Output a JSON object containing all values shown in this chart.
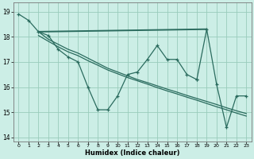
{
  "xlabel": "Humidex (Indice chaleur)",
  "bg_color": "#cceee6",
  "line_color": "#2a6b5e",
  "grid_color": "#99ccbb",
  "xlim": [
    -0.5,
    23.5
  ],
  "ylim": [
    13.85,
    19.35
  ],
  "yticks": [
    14,
    15,
    16,
    17,
    18,
    19
  ],
  "xticks": [
    0,
    1,
    2,
    3,
    4,
    5,
    6,
    7,
    8,
    9,
    10,
    11,
    12,
    13,
    14,
    15,
    16,
    17,
    18,
    19,
    20,
    21,
    22,
    23
  ],
  "line1_x": [
    0,
    1,
    2,
    3,
    4,
    5,
    6,
    7,
    8,
    9,
    10,
    11,
    12,
    13,
    14,
    15,
    16,
    17,
    18
  ],
  "line1_y": [
    18.9,
    18.65,
    18.2,
    18.05,
    17.5,
    17.2,
    17.0,
    16.0,
    15.1,
    15.1,
    15.65,
    16.5,
    16.6,
    17.1,
    17.65,
    17.1,
    17.1,
    16.5,
    16.3
  ],
  "line2_x": [
    2,
    19
  ],
  "line2_y": [
    18.2,
    18.3
  ],
  "line3_x": [
    2,
    3,
    4,
    5,
    6,
    7,
    8,
    9,
    10,
    11,
    12,
    13,
    14,
    15,
    16,
    17,
    18,
    19,
    20,
    21,
    22,
    23
  ],
  "line3_y": [
    18.2,
    17.9,
    17.7,
    17.5,
    17.35,
    17.15,
    16.95,
    16.75,
    16.6,
    16.45,
    16.3,
    16.18,
    16.05,
    15.92,
    15.8,
    15.67,
    15.55,
    15.43,
    15.31,
    15.18,
    15.06,
    14.95
  ],
  "line4_x": [
    2,
    3,
    4,
    5,
    6,
    7,
    8,
    9,
    10,
    11,
    12,
    13,
    14,
    15,
    16,
    17,
    18,
    19,
    20,
    21,
    22,
    23
  ],
  "line4_y": [
    18.05,
    17.82,
    17.6,
    17.4,
    17.25,
    17.05,
    16.87,
    16.68,
    16.53,
    16.38,
    16.25,
    16.12,
    15.98,
    15.85,
    15.73,
    15.6,
    15.48,
    15.35,
    15.22,
    15.1,
    14.97,
    14.85
  ],
  "line5_x": [
    18,
    19,
    20,
    21,
    22,
    23
  ],
  "line5_y": [
    16.3,
    18.3,
    16.1,
    14.4,
    15.65,
    15.65
  ]
}
